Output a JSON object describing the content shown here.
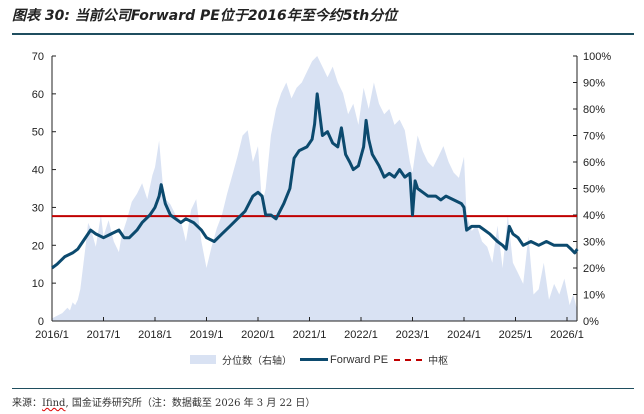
{
  "header": {
    "title": "图表 30: 当前公司Forward PE位于2016年至今约5th分位"
  },
  "footer": {
    "source_prefix": "来源：",
    "source_link": "Ifind",
    "source_rest": ", 国金证券研究所（注：数据截至 2026 年 3 月 22 日）"
  },
  "colors": {
    "area": "#d9e2f3",
    "line": "#0c4a6e",
    "center": "#c00000",
    "rule": "#1f4e5f"
  },
  "chart_data": {
    "type": "line",
    "title": "图表 30: 当前公司Forward PE位于2016年至今约5th分位",
    "xlabel": "",
    "ylabel": "",
    "x_ticks": [
      "2016/1",
      "2017/1",
      "2018/1",
      "2019/1",
      "2020/1",
      "2021/1",
      "2022/1",
      "2023/1",
      "2024/1",
      "2025/1",
      "2026/1"
    ],
    "xlim": [
      2016.0,
      2026.2
    ],
    "ylim_left": [
      0,
      70
    ],
    "y_ticks_left": [
      "0",
      "10",
      "20",
      "30",
      "40",
      "50",
      "60",
      "70"
    ],
    "ylim_right": [
      0,
      100
    ],
    "y_ticks_right": [
      "0%",
      "10%",
      "20%",
      "30%",
      "40%",
      "50%",
      "60%",
      "70%",
      "80%",
      "90%",
      "100%"
    ],
    "legend": {
      "position": "bottom",
      "entries": [
        "分位数（右轴）",
        "Forward PE",
        "中枢"
      ]
    },
    "center_line": 27.7,
    "series": [
      {
        "name": "Forward PE",
        "axis": "left",
        "kind": "line",
        "x": [
          2016.0,
          2016.1,
          2016.25,
          2016.4,
          2016.5,
          2016.6,
          2016.75,
          2016.85,
          2017.0,
          2017.15,
          2017.3,
          2017.4,
          2017.5,
          2017.65,
          2017.75,
          2017.9,
          2018.0,
          2018.08,
          2018.12,
          2018.2,
          2018.3,
          2018.4,
          2018.5,
          2018.6,
          2018.75,
          2018.9,
          2019.0,
          2019.15,
          2019.3,
          2019.45,
          2019.6,
          2019.75,
          2019.9,
          2020.0,
          2020.08,
          2020.15,
          2020.25,
          2020.35,
          2020.5,
          2020.62,
          2020.7,
          2020.8,
          2020.95,
          2021.05,
          2021.1,
          2021.15,
          2021.25,
          2021.35,
          2021.45,
          2021.55,
          2021.62,
          2021.7,
          2021.78,
          2021.85,
          2021.95,
          2022.05,
          2022.1,
          2022.15,
          2022.22,
          2022.35,
          2022.45,
          2022.55,
          2022.65,
          2022.75,
          2022.85,
          2022.95,
          2023.0,
          2023.05,
          2023.1,
          2023.2,
          2023.3,
          2023.45,
          2023.55,
          2023.65,
          2023.8,
          2023.95,
          2024.0,
          2024.05,
          2024.15,
          2024.3,
          2024.4,
          2024.5,
          2024.65,
          2024.75,
          2024.82,
          2024.88,
          2024.95,
          2025.05,
          2025.15,
          2025.3,
          2025.45,
          2025.6,
          2025.75,
          2025.9,
          2026.0,
          2026.08,
          2026.15,
          2026.2
        ],
        "values": [
          14,
          15,
          17,
          18,
          19,
          21,
          24,
          23,
          22,
          23,
          24,
          22,
          22,
          24,
          26,
          28,
          30,
          33,
          36,
          31,
          28,
          27,
          26,
          27,
          26,
          24,
          22,
          21,
          23,
          25,
          27,
          29,
          33,
          34,
          33,
          28,
          28,
          27,
          31,
          35,
          43,
          45,
          46,
          48,
          52,
          60,
          49,
          50,
          47,
          46,
          51,
          44,
          42,
          40,
          41,
          46,
          53,
          48,
          44,
          41,
          38,
          39,
          38,
          40,
          38,
          39,
          28,
          37,
          35,
          34,
          33,
          33,
          32,
          33,
          32,
          31,
          30,
          24,
          25,
          25,
          24,
          23,
          21,
          20,
          19,
          25,
          23,
          22,
          20,
          21,
          20,
          21,
          20,
          20,
          20,
          19,
          18,
          19
        ]
      },
      {
        "name": "分位数（右轴）",
        "axis": "right",
        "kind": "area",
        "x": [
          2016.0,
          2016.1,
          2016.2,
          2016.3,
          2016.35,
          2016.4,
          2016.45,
          2016.5,
          2016.55,
          2016.6,
          2016.65,
          2016.7,
          2016.75,
          2016.85,
          2016.95,
          2017.0,
          2017.1,
          2017.2,
          2017.3,
          2017.35,
          2017.45,
          2017.55,
          2017.65,
          2017.75,
          2017.85,
          2017.95,
          2018.0,
          2018.08,
          2018.15,
          2018.2,
          2018.3,
          2018.4,
          2018.5,
          2018.6,
          2018.7,
          2018.8,
          2018.9,
          2019.0,
          2019.1,
          2019.2,
          2019.3,
          2019.4,
          2019.5,
          2019.6,
          2019.7,
          2019.8,
          2019.9,
          2020.0,
          2020.08,
          2020.15,
          2020.25,
          2020.35,
          2020.45,
          2020.55,
          2020.65,
          2020.75,
          2020.85,
          2020.95,
          2021.05,
          2021.15,
          2021.25,
          2021.35,
          2021.45,
          2021.55,
          2021.65,
          2021.75,
          2021.85,
          2021.95,
          2022.05,
          2022.15,
          2022.25,
          2022.35,
          2022.45,
          2022.55,
          2022.65,
          2022.75,
          2022.85,
          2022.95,
          2023.0,
          2023.1,
          2023.2,
          2023.3,
          2023.4,
          2023.5,
          2023.6,
          2023.7,
          2023.8,
          2023.9,
          2024.0,
          2024.05,
          2024.15,
          2024.25,
          2024.35,
          2024.45,
          2024.55,
          2024.65,
          2024.75,
          2024.85,
          2024.95,
          2025.05,
          2025.15,
          2025.25,
          2025.35,
          2025.45,
          2025.55,
          2025.65,
          2025.75,
          2025.85,
          2025.95,
          2026.05,
          2026.12,
          2026.2
        ],
        "values": [
          1,
          2,
          3,
          5,
          4,
          7,
          6,
          8,
          12,
          20,
          28,
          37,
          35,
          28,
          40,
          32,
          38,
          30,
          26,
          32,
          38,
          45,
          48,
          52,
          46,
          55,
          58,
          68,
          52,
          46,
          44,
          40,
          38,
          30,
          42,
          46,
          30,
          20,
          28,
          35,
          40,
          48,
          55,
          62,
          70,
          72,
          60,
          66,
          44,
          50,
          70,
          80,
          86,
          90,
          84,
          88,
          90,
          94,
          98,
          100,
          96,
          92,
          96,
          90,
          86,
          78,
          82,
          74,
          88,
          80,
          90,
          82,
          78,
          80,
          74,
          76,
          72,
          60,
          56,
          70,
          64,
          60,
          58,
          62,
          66,
          60,
          56,
          54,
          62,
          40,
          34,
          36,
          30,
          28,
          22,
          36,
          20,
          40,
          22,
          18,
          14,
          32,
          10,
          12,
          22,
          8,
          14,
          10,
          16,
          6,
          10,
          4
        ]
      }
    ]
  }
}
